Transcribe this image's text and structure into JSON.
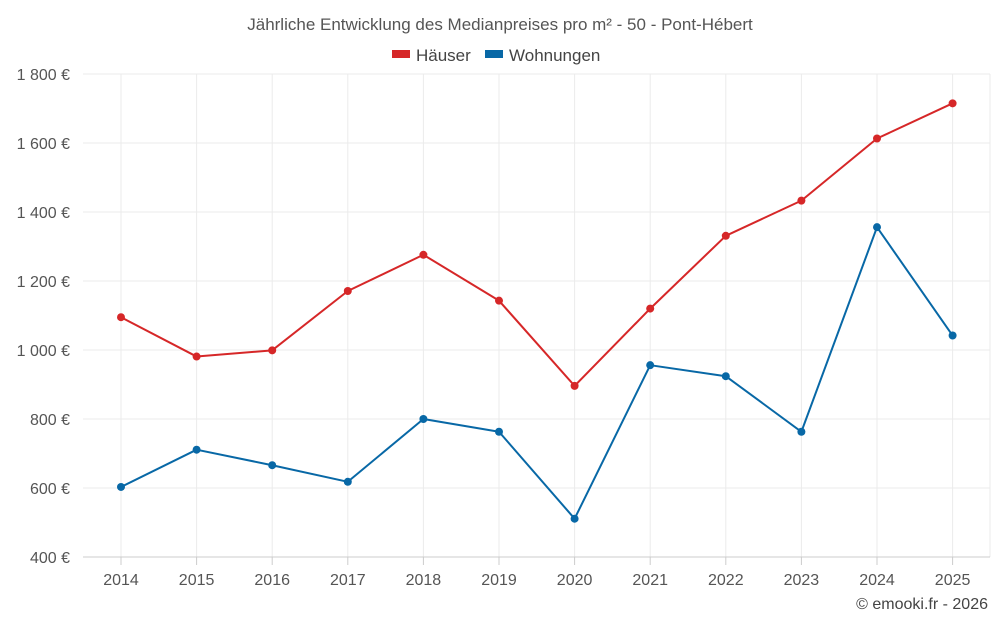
{
  "chart_data": {
    "type": "line",
    "title": "Jährliche Entwicklung des Medianpreises pro m² - 50 - Pont-Hébert",
    "categories": [
      "2014",
      "2015",
      "2016",
      "2017",
      "2018",
      "2019",
      "2020",
      "2021",
      "2022",
      "2023",
      "2024",
      "2025"
    ],
    "series": [
      {
        "name": "Häuser",
        "color": "#d62728",
        "values": [
          1095,
          981,
          999,
          1171,
          1276,
          1143,
          896,
          1120,
          1331,
          1433,
          1613,
          1715
        ]
      },
      {
        "name": "Wohnungen",
        "color": "#0868a6",
        "values": [
          603,
          711,
          666,
          618,
          800,
          763,
          511,
          956,
          924,
          763,
          1356,
          1042
        ]
      }
    ],
    "ylim": [
      400,
      1800
    ],
    "yticks": [
      400,
      600,
      800,
      1000,
      1200,
      1400,
      1600,
      1800
    ],
    "ytick_labels": [
      "400 €",
      "600 €",
      "800 €",
      "1 000 €",
      "1 200 €",
      "1 400 €",
      "1 600 €",
      "1 800 €"
    ],
    "legend_position": "top-center",
    "grid": true,
    "xlabel": "",
    "ylabel": ""
  },
  "credit": "© emooki.fr - 2026"
}
